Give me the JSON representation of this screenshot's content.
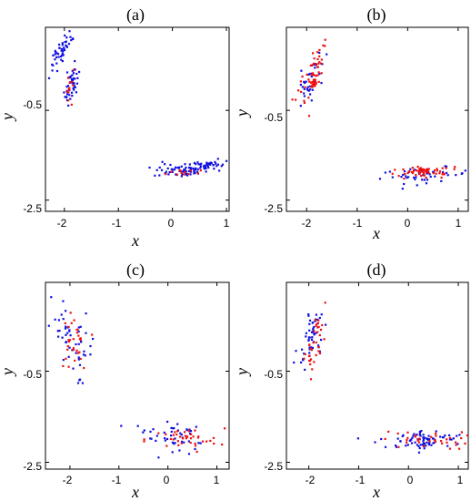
{
  "colors": {
    "blue": "#1010e0",
    "red": "#ee1111"
  },
  "chart_data": [
    {
      "type": "scatter",
      "title": "(a)",
      "xlabel": "x",
      "ylabel": "y",
      "xlim": [
        -2.35,
        1.05
      ],
      "ylim": [
        -2.75,
        1.35
      ],
      "xticks": [
        -2,
        -1,
        0,
        1
      ],
      "xticklabels": [
        "-2",
        "-1",
        "0",
        "1"
      ],
      "yticks": [
        -0.5,
        -2.5
      ],
      "yticklabels": [
        "-0.5",
        "-2.5"
      ],
      "series": [
        {
          "color": "blue",
          "clusters": [
            {
              "cx": -2.05,
              "cy": 0.8,
              "sx": 0.06,
              "sy": 0.24,
              "rot": -0.35,
              "n": 45
            },
            {
              "cx": -1.88,
              "cy": 0.05,
              "sx": 0.06,
              "sy": 0.22,
              "rot": -0.2,
              "n": 45
            },
            {
              "cx": 0.15,
              "cy": -1.85,
              "sx": 0.25,
              "sy": 0.07,
              "rot": 0.0,
              "n": 55
            },
            {
              "cx": 0.65,
              "cy": -1.72,
              "sx": 0.24,
              "sy": 0.06,
              "rot": 0.0,
              "n": 50
            }
          ]
        },
        {
          "color": "red",
          "clusters": [
            {
              "cx": -1.9,
              "cy": 0.0,
              "sx": 0.04,
              "sy": 0.18,
              "rot": -0.2,
              "n": 12
            },
            {
              "cx": 0.15,
              "cy": -1.88,
              "sx": 0.18,
              "sy": 0.05,
              "rot": 0.0,
              "n": 12
            }
          ]
        }
      ]
    },
    {
      "type": "scatter",
      "title": "(b)",
      "xlabel": "x",
      "ylabel": "y",
      "xlim": [
        -2.4,
        1.2
      ],
      "ylim": [
        -2.75,
        1.35
      ],
      "xticks": [
        -2,
        -1,
        0,
        1
      ],
      "xticklabels": [
        "-2",
        "-1",
        "0",
        "1"
      ],
      "yticks": [
        -0.5,
        -2.5
      ],
      "yticklabels": [
        "-0.5",
        "-2.5"
      ],
      "series": [
        {
          "color": "blue",
          "clusters": [
            {
              "cx": -1.9,
              "cy": 0.25,
              "sx": 0.08,
              "sy": 0.32,
              "rot": -0.25,
              "n": 35
            },
            {
              "cx": 0.35,
              "cy": -1.95,
              "sx": 0.45,
              "sy": 0.08,
              "rot": 0.05,
              "n": 45
            }
          ]
        },
        {
          "color": "red",
          "clusters": [
            {
              "cx": -1.9,
              "cy": 0.3,
              "sx": 0.1,
              "sy": 0.35,
              "rot": -0.3,
              "n": 45
            },
            {
              "cx": -1.85,
              "cy": 0.1,
              "sx": 0.03,
              "sy": 0.08,
              "rot": -0.4,
              "n": 25
            },
            {
              "cx": 0.3,
              "cy": -1.9,
              "sx": 0.4,
              "sy": 0.07,
              "rot": 0.05,
              "n": 40
            },
            {
              "cx": 0.3,
              "cy": -1.85,
              "sx": 0.08,
              "sy": 0.03,
              "rot": 0.0,
              "n": 25
            }
          ]
        }
      ]
    },
    {
      "type": "scatter",
      "title": "(c)",
      "xlabel": "x",
      "ylabel": "y",
      "xlim": [
        -2.5,
        1.25
      ],
      "ylim": [
        -2.65,
        1.45
      ],
      "xticks": [
        -2,
        -1,
        0,
        1
      ],
      "xticklabels": [
        "-2",
        "-1",
        "0",
        "1"
      ],
      "yticks": [
        -0.5,
        -2.5
      ],
      "yticklabels": [
        "-0.5",
        "-2.5"
      ],
      "series": [
        {
          "color": "blue",
          "clusters": [
            {
              "cx": -1.95,
              "cy": 0.3,
              "sx": 0.2,
              "sy": 0.38,
              "rot": 0.55,
              "n": 45
            },
            {
              "cx": -1.8,
              "cy": -0.4,
              "sx": 0.06,
              "sy": 0.2,
              "rot": 0.0,
              "n": 6
            },
            {
              "cx": 0.25,
              "cy": -1.95,
              "sx": 0.3,
              "sy": 0.15,
              "rot": -0.5,
              "n": 40
            },
            {
              "cx": -0.5,
              "cy": -1.8,
              "sx": 0.2,
              "sy": 0.08,
              "rot": -0.2,
              "n": 6
            }
          ]
        },
        {
          "color": "red",
          "clusters": [
            {
              "cx": -1.95,
              "cy": 0.1,
              "sx": 0.12,
              "sy": 0.3,
              "rot": -0.1,
              "n": 30
            },
            {
              "cx": 0.35,
              "cy": -2.0,
              "sx": 0.4,
              "sy": 0.12,
              "rot": 0.0,
              "n": 40
            }
          ]
        }
      ]
    },
    {
      "type": "scatter",
      "title": "(d)",
      "xlabel": "x",
      "ylabel": "y",
      "xlim": [
        -2.45,
        1.2
      ],
      "ylim": [
        -2.65,
        1.45
      ],
      "xticks": [
        -2,
        -1,
        0,
        1
      ],
      "xticklabels": [
        "-2",
        "-1",
        "0",
        "1"
      ],
      "yticks": [
        -0.5,
        -2.5
      ],
      "yticklabels": [
        "-0.5",
        "-2.5"
      ],
      "series": [
        {
          "color": "blue",
          "clusters": [
            {
              "cx": -1.95,
              "cy": 0.25,
              "sx": 0.12,
              "sy": 0.4,
              "rot": -0.3,
              "n": 50
            },
            {
              "cx": 0.3,
              "cy": -2.0,
              "sx": 0.45,
              "sy": 0.1,
              "rot": 0.0,
              "n": 55
            },
            {
              "cx": 0.3,
              "cy": -2.0,
              "sx": 0.05,
              "sy": 0.1,
              "rot": 0.0,
              "n": 20
            }
          ]
        },
        {
          "color": "red",
          "clusters": [
            {
              "cx": -1.92,
              "cy": 0.1,
              "sx": 0.1,
              "sy": 0.4,
              "rot": -0.2,
              "n": 35
            },
            {
              "cx": 0.35,
              "cy": -2.02,
              "sx": 0.45,
              "sy": 0.1,
              "rot": 0.0,
              "n": 35
            }
          ]
        }
      ]
    }
  ]
}
